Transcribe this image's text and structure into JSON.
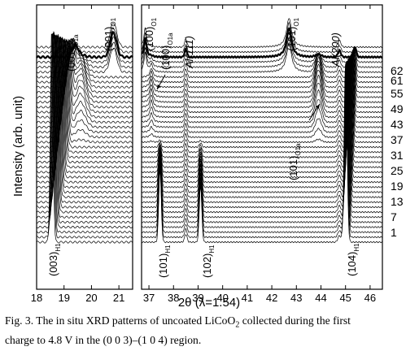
{
  "chart_data": {
    "type": "line",
    "ylabel": "Intensity (arb. unit)",
    "xlabel": "2θ (λ=1.54)",
    "panels": [
      {
        "xlim": [
          18.0,
          21.5
        ],
        "ticks": [
          18,
          19,
          20,
          21
        ],
        "tick_labels": [
          "18",
          "19",
          "20",
          "21"
        ]
      },
      {
        "xlim": [
          36.7,
          46.5
        ],
        "ticks": [
          37,
          38,
          39,
          40,
          41,
          42,
          43,
          44,
          45,
          46
        ],
        "tick_labels": [
          "37",
          "38",
          "39",
          "40",
          "41",
          "42",
          "43",
          "44",
          "45",
          "46"
        ]
      }
    ],
    "series_labels": [
      "1",
      "7",
      "13",
      "19",
      "25",
      "31",
      "37",
      "43",
      "49",
      "55",
      "61",
      "62"
    ],
    "highlighted_series": "61",
    "peaks": [
      {
        "name": "(003)H1",
        "main": "(003)",
        "sub": "H1",
        "x": 18.85
      },
      {
        "name": "(001)O1a",
        "main": "(001)",
        "sub": "O1a",
        "x": 19.6
      },
      {
        "name": "(001)O1",
        "main": "(001)",
        "sub": "O1",
        "x": 20.8
      },
      {
        "name": "(100)O1",
        "main": "(100)",
        "sub": "O1",
        "x": 36.85
      },
      {
        "name": "(100)O1a",
        "main": "(100)",
        "sub": "O1a",
        "x": 37.1
      },
      {
        "name": "(101)H1",
        "main": "(101)",
        "sub": "H1",
        "x": 37.45
      },
      {
        "name": "Al(111)",
        "main": "Al(111)",
        "sub": "",
        "x": 38.5
      },
      {
        "name": "(102)H1",
        "main": "(102)",
        "sub": "H1",
        "x": 39.1
      },
      {
        "name": "(101)O1",
        "main": "(101)",
        "sub": "O1",
        "x": 42.7
      },
      {
        "name": "(101)O1a",
        "main": "(101)",
        "sub": "O1a",
        "x": 43.9
      },
      {
        "name": "Al(200)",
        "main": "Al(200)",
        "sub": "",
        "x": 44.75
      },
      {
        "name": "(104)H1",
        "main": "(104)",
        "sub": "H1",
        "x": 45.0
      }
    ]
  },
  "caption": {
    "line1_pre": "Fig. 3.  The in situ XRD patterns of uncoated LiCoO",
    "line1_sub": "2",
    "line1_post": " collected during the first",
    "line2": "charge to 4.8 V in the (0 0 3)–(1 0 4) region."
  }
}
